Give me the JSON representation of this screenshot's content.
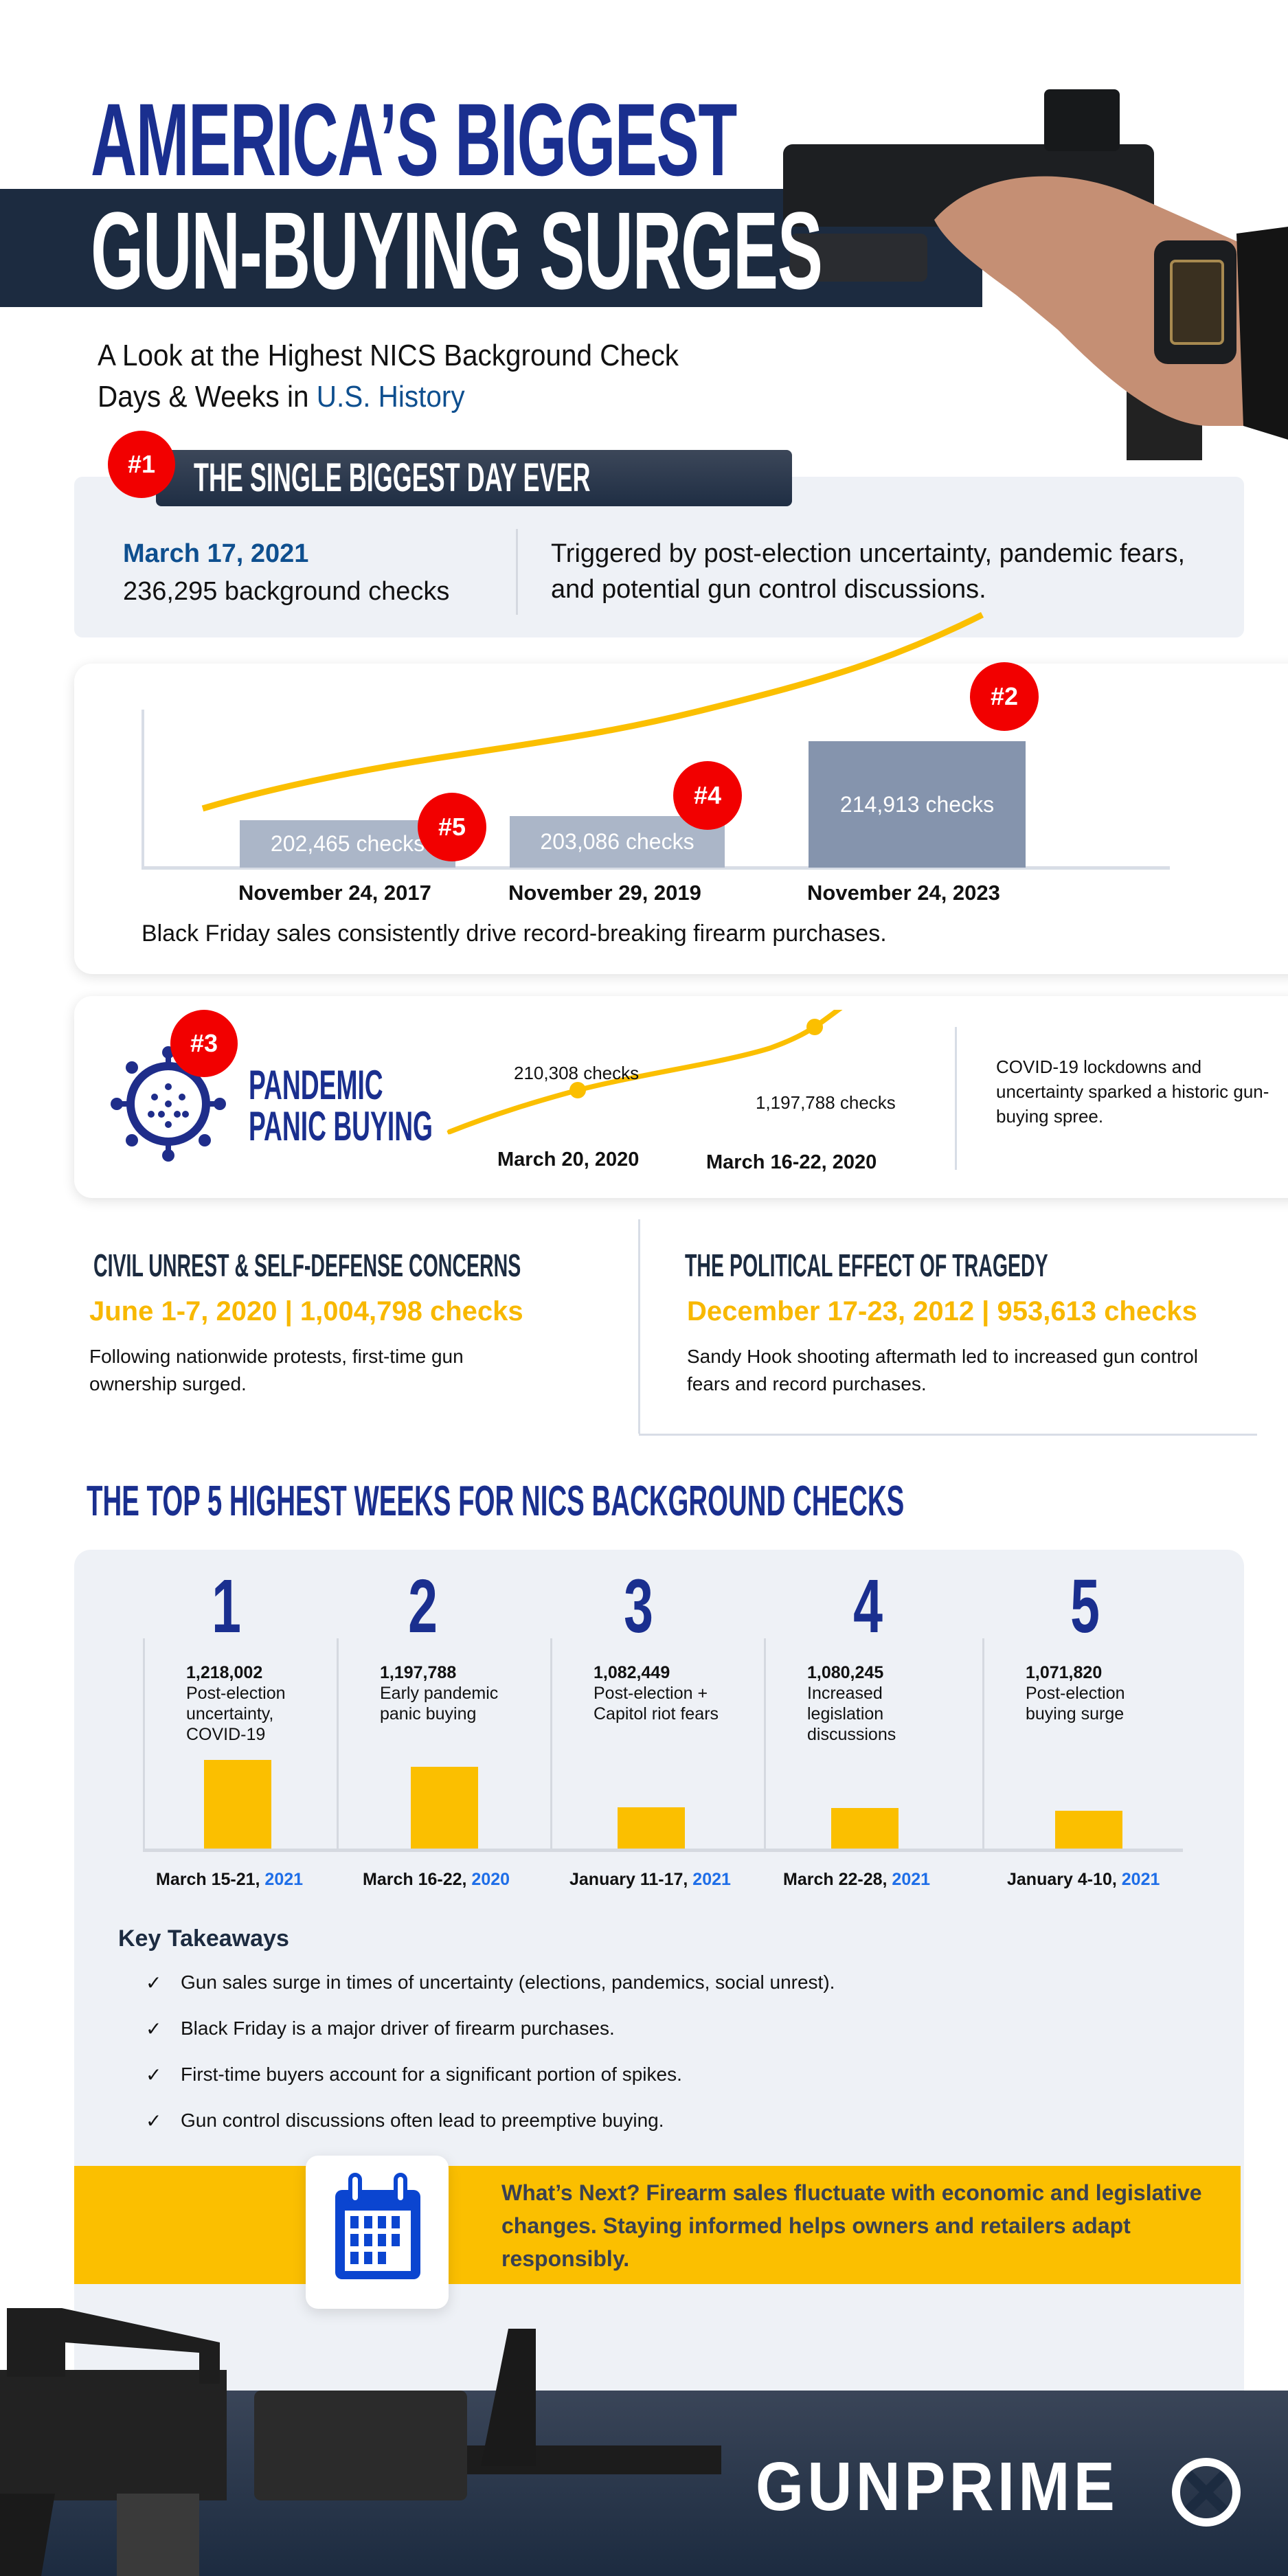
{
  "header": {
    "title_line1": "AMERICA’S BIGGEST",
    "title_line2": "GUN-BUYING SURGES",
    "subtitle_part1": "A Look at the Highest NICS Background Check",
    "subtitle_part2": "Days & Weeks in ",
    "subtitle_highlight": "U.S. History"
  },
  "biggest_day": {
    "rank": "#1",
    "heading": "THE SINGLE BIGGEST DAY EVER",
    "date": "March 17, 2021",
    "checks": "236,295 background checks",
    "description": "Triggered by post-election uncertainty, pandemic fears, and potential gun control discussions."
  },
  "black_friday": {
    "bars": [
      {
        "rank": "#5",
        "label": "202,465  checks",
        "date": "November 24, 2017",
        "value": 202465
      },
      {
        "rank": "#4",
        "label": "203,086 checks",
        "date": "November 29, 2019",
        "value": 203086
      },
      {
        "rank": "#2",
        "label": "214,913 checks",
        "date": "November 24, 2023",
        "value": 214913
      }
    ],
    "caption": "Black Friday sales consistently drive record-breaking firearm purchases."
  },
  "pandemic": {
    "rank": "#3",
    "title_line1": "PANDEMIC",
    "title_line2": "PANIC BUYING",
    "point1_label": "210,308 checks",
    "point1_date": "March 20, 2020",
    "point2_label": "1,197,788 checks",
    "point2_date": "March 16-22, 2020",
    "description": "COVID-19 lockdowns and uncertainty sparked a historic gun-buying spree."
  },
  "civil_unrest": {
    "heading": "CIVIL UNREST & SELF-DEFENSE CONCERNS",
    "stat": "June 1-7, 2020 | 1,004,798 checks",
    "body": "Following nationwide protests, first-time gun ownership surged."
  },
  "tragedy": {
    "heading": "THE POLITICAL EFFECT OF TRAGEDY",
    "stat": "December 17-23, 2012 | 953,613 checks",
    "body": "Sandy Hook shooting aftermath led to increased gun control fears and record purchases."
  },
  "top5": {
    "title": "THE TOP 5 HIGHEST WEEKS FOR NICS BACKGROUND CHECKS",
    "weeks": [
      {
        "rank": "1",
        "checks": "1,218,002",
        "value": 1218002,
        "reason": "Post-election uncertainty, COVID-19",
        "date": "March 15-21, ",
        "year": "2021"
      },
      {
        "rank": "2",
        "checks": "1,197,788",
        "value": 1197788,
        "reason": "Early pandemic panic buying",
        "date": "March 16-22, ",
        "year": "2020"
      },
      {
        "rank": "3",
        "checks": "1,082,449",
        "value": 1082449,
        "reason": "Post-election + Capitol riot fears",
        "date": "January 11-17, ",
        "year": "2021"
      },
      {
        "rank": "4",
        "checks": "1,080,245",
        "value": 1080245,
        "reason": "Increased legislation discussions",
        "date": "March 22-28, ",
        "year": "2021"
      },
      {
        "rank": "5",
        "checks": "1,071,820",
        "value": 1071820,
        "reason": "Post-election buying surge",
        "date": "January 4-10, ",
        "year": "2021"
      }
    ]
  },
  "takeaways": {
    "title": "Key Takeaways",
    "items": [
      "Gun sales surge in times of uncertainty (elections, pandemics, social unrest).",
      "Black Friday is a major driver of firearm purchases.",
      "First-time buyers account for a significant portion of spikes.",
      "Gun control discussions often lead to preemptive buying."
    ]
  },
  "whats_next": {
    "text": "What’s Next? Firearm sales fluctuate with economic and legislative changes. Staying informed helps owners and retailers adapt responsibly.",
    "icon": "calendar-icon"
  },
  "brand": {
    "logo": "GUNPRIME"
  },
  "colors": {
    "navy": "#1c2b40",
    "title_blue": "#1a2f8f",
    "yellow": "#fbbf00",
    "red": "#f20000",
    "light_bg": "#eef1f6",
    "year_blue": "#1e6ee8"
  }
}
